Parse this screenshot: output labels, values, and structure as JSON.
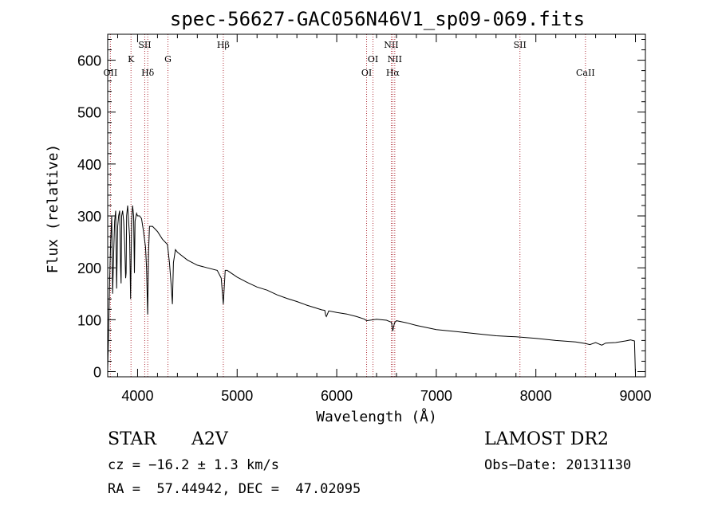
{
  "chart_data": {
    "type": "line",
    "title": "spec-56627-GAC056N46V1_sp09-069.fits",
    "xlabel": "Wavelength (Å)",
    "ylabel": "Flux (relative)",
    "xlim": [
      3700,
      9100
    ],
    "ylim": [
      -10,
      650
    ],
    "xticks": [
      4000,
      5000,
      6000,
      7000,
      8000,
      9000
    ],
    "yticks": [
      0,
      100,
      200,
      300,
      400,
      500,
      600
    ],
    "grid": false,
    "series": [
      {
        "x": [
          3700,
          3710,
          3720,
          3730,
          3740,
          3750,
          3760,
          3770,
          3780,
          3790,
          3800,
          3810,
          3820,
          3830,
          3835,
          3840,
          3850,
          3860,
          3870,
          3880,
          3885,
          3890,
          3900,
          3910,
          3920,
          3930,
          3940,
          3950,
          3960,
          3968,
          3975,
          3990,
          4000,
          4020,
          4040,
          4060,
          4080,
          4090,
          4101,
          4110,
          4120,
          4150,
          4200,
          4250,
          4300,
          4320,
          4340,
          4350,
          4360,
          4380,
          4400,
          4500,
          4600,
          4700,
          4800,
          4840,
          4861,
          4880,
          4900,
          5000,
          5100,
          5200,
          5300,
          5400,
          5500,
          5600,
          5700,
          5800,
          5850,
          5880,
          5890,
          5896,
          5920,
          6000,
          6100,
          6200,
          6280,
          6300,
          6400,
          6500,
          6550,
          6563,
          6580,
          6600,
          6700,
          6800,
          6900,
          7000,
          7200,
          7400,
          7600,
          7800,
          8000,
          8200,
          8400,
          8498,
          8542,
          8600,
          8662,
          8700,
          8800,
          8900,
          8950,
          8990,
          9000
        ],
        "values": [
          5,
          80,
          180,
          250,
          300,
          150,
          230,
          290,
          310,
          160,
          280,
          300,
          310,
          200,
          170,
          300,
          310,
          290,
          250,
          180,
          190,
          300,
          320,
          290,
          260,
          140,
          290,
          320,
          300,
          190,
          290,
          305,
          300,
          300,
          295,
          270,
          240,
          200,
          110,
          230,
          280,
          280,
          270,
          255,
          245,
          210,
          160,
          130,
          210,
          235,
          230,
          215,
          205,
          200,
          195,
          180,
          130,
          195,
          195,
          182,
          172,
          163,
          157,
          148,
          141,
          135,
          128,
          122,
          119,
          118,
          108,
          106,
          117,
          114,
          111,
          106,
          101,
          98,
          101,
          99,
          95,
          78,
          94,
          98,
          94,
          89,
          85,
          81,
          77,
          73,
          69,
          67,
          64,
          60,
          57,
          54,
          52,
          56,
          51,
          55,
          56,
          59,
          61,
          59,
          -5
        ]
      }
    ],
    "lines": [
      {
        "label": "OII",
        "x": 3727,
        "row": 2
      },
      {
        "label": "K",
        "x": 3934,
        "row": 1
      },
      {
        "label": "SII",
        "x": 4072,
        "row": 0
      },
      {
        "label": "Hδ",
        "x": 4102,
        "row": 2
      },
      {
        "label": "G",
        "x": 4305,
        "row": 1
      },
      {
        "label": "Hβ",
        "x": 4861,
        "row": 0
      },
      {
        "label": "OI",
        "x": 6300,
        "row": 2
      },
      {
        "label": "OI",
        "x": 6364,
        "row": 1
      },
      {
        "label": "NII",
        "x": 6548,
        "row": 0
      },
      {
        "label": "Hα",
        "x": 6563,
        "row": 2
      },
      {
        "label": "NII",
        "x": 6583,
        "row": 1
      },
      {
        "label": "SII",
        "x": 7840,
        "row": 0
      },
      {
        "label": "CaII",
        "x": 8498,
        "row": 2
      }
    ],
    "line_color": "#000000",
    "marker_color": "#b0303a"
  },
  "info": {
    "class": "STAR",
    "subclass": "A2V",
    "survey": "LAMOST DR2",
    "cz": "cz = −16.2 ± 1.3 km/s",
    "obs_date": "Obs−Date: 20131130",
    "radec": "RA =  57.44942, DEC =  47.02095"
  }
}
